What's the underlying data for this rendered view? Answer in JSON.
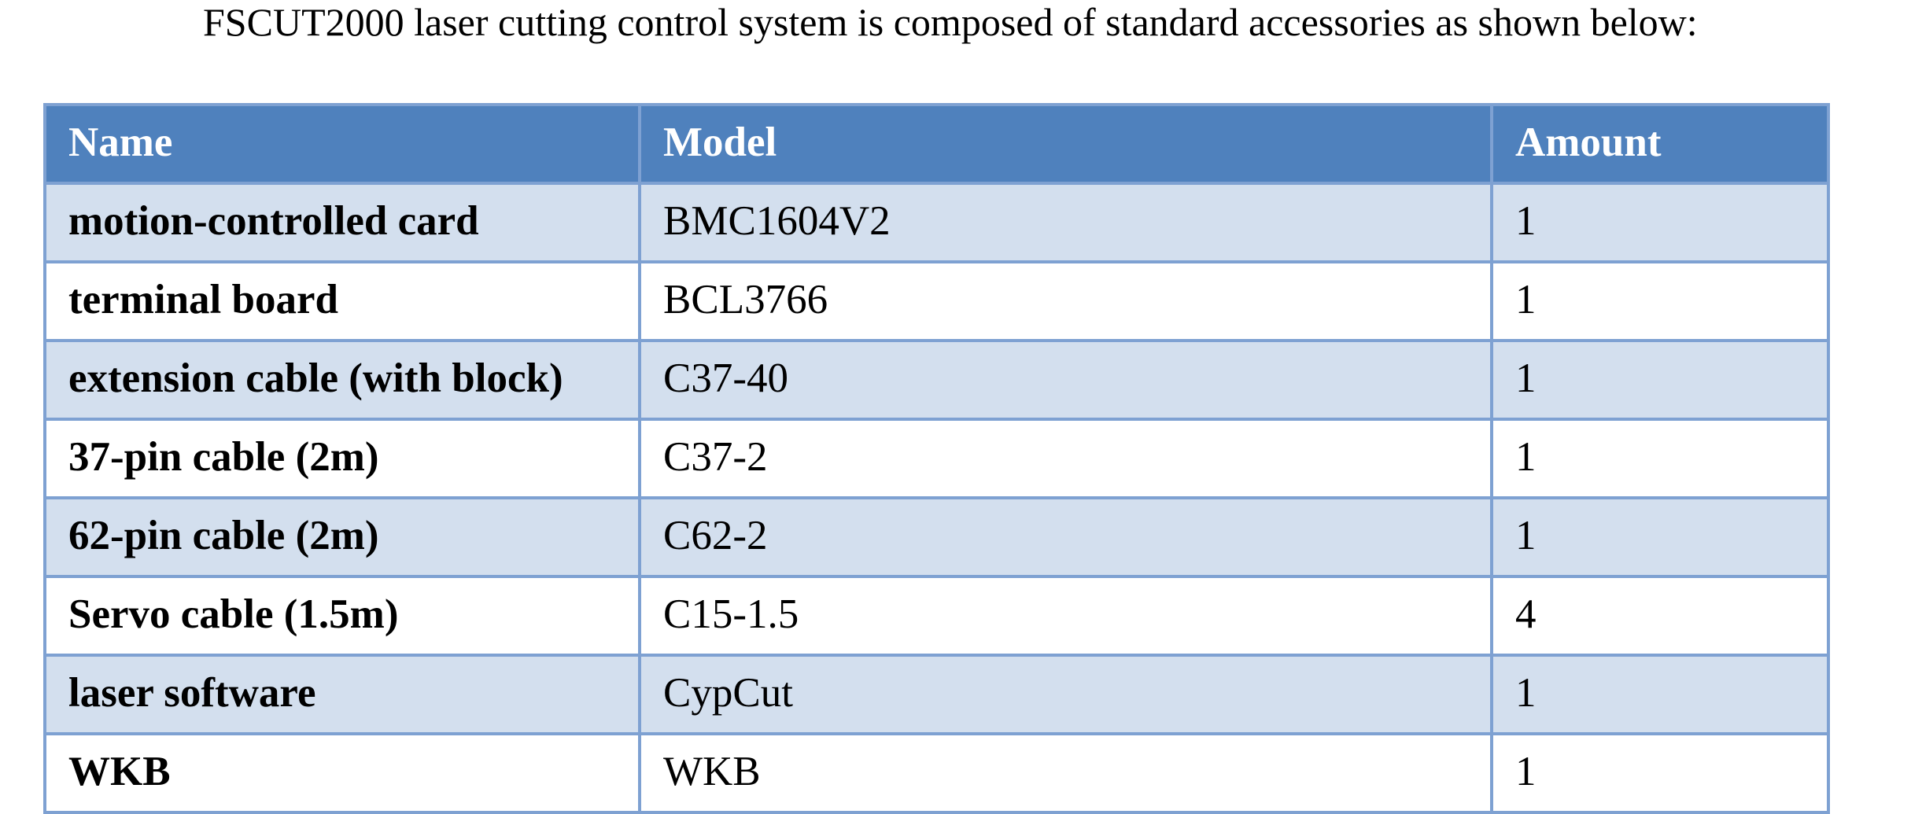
{
  "intro": "FSCUT2000 laser cutting control system is composed of standard accessories as shown below:",
  "table": {
    "columns": [
      "Name",
      "Model",
      "Amount"
    ],
    "rows": [
      [
        "motion-controlled card",
        "BMC1604V2",
        "1"
      ],
      [
        "terminal board",
        "BCL3766",
        "1"
      ],
      [
        "extension cable (with block)",
        "C37-40",
        "1"
      ],
      [
        "37-pin cable (2m)",
        "C37-2",
        "1"
      ],
      [
        "62-pin cable (2m)",
        "C62-2",
        "1"
      ],
      [
        "Servo cable (1.5m)",
        "C15-1.5",
        "4"
      ],
      [
        "laser software",
        "CypCut",
        "1"
      ],
      [
        "WKB",
        "WKB",
        "1"
      ]
    ]
  }
}
